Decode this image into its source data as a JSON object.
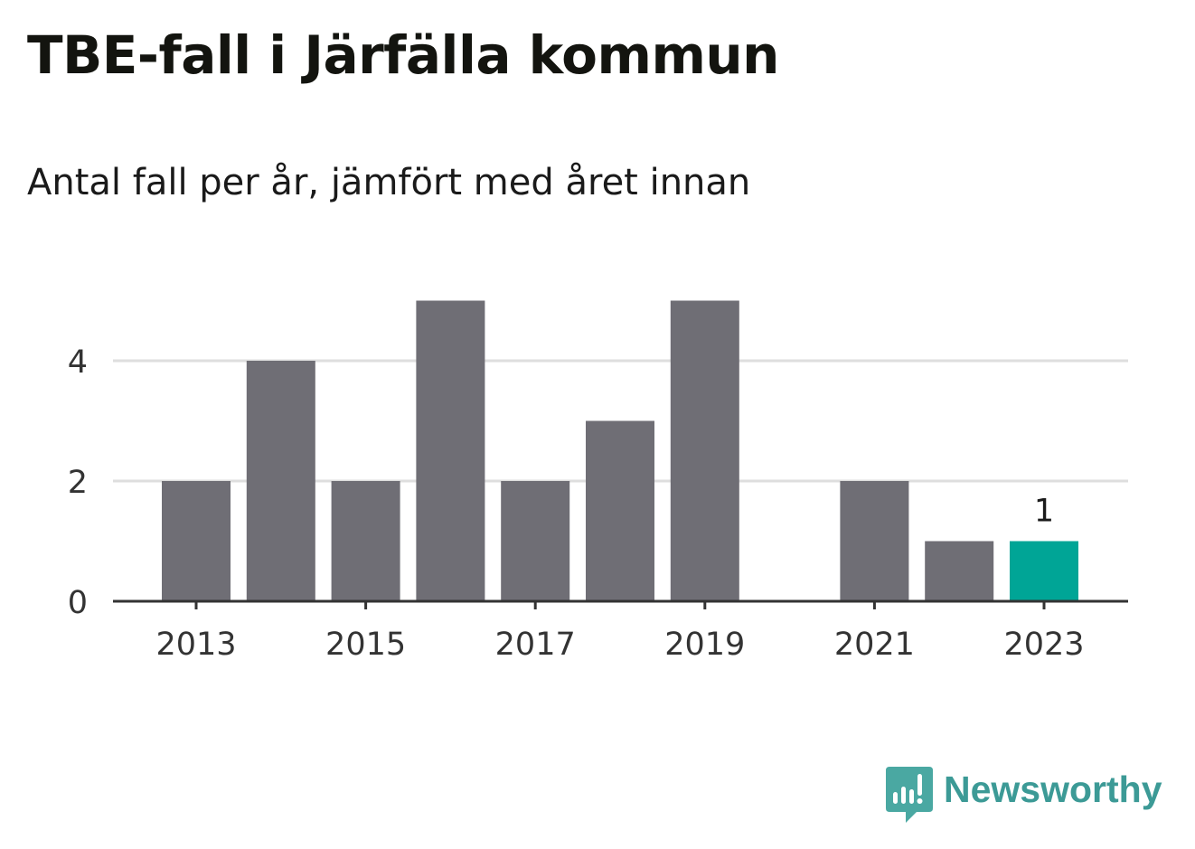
{
  "title": "TBE-fall i Järfälla kommun",
  "subtitle": "Antal fall per år, jämfört med året innan",
  "brand": {
    "name": "Newsworthy",
    "color": "#3c9a96"
  },
  "chart_data": {
    "type": "bar",
    "categories": [
      "2013",
      "2014",
      "2015",
      "2016",
      "2017",
      "2018",
      "2019",
      "2020",
      "2021",
      "2022",
      "2023"
    ],
    "values": [
      2,
      4,
      2,
      5,
      2,
      3,
      5,
      0,
      2,
      1,
      1
    ],
    "x_tick_labels": [
      "2013",
      "2015",
      "2017",
      "2019",
      "2021",
      "2023"
    ],
    "y_ticks": [
      0,
      2,
      4
    ],
    "ylim": [
      0,
      5
    ],
    "grid": true,
    "highlight": {
      "category": "2023",
      "label": "1"
    },
    "colors": {
      "bar": "#6f6e75",
      "highlight": "#00a596",
      "grid": "#dedede",
      "axis": "#333333",
      "tick_text": "#333333"
    }
  }
}
